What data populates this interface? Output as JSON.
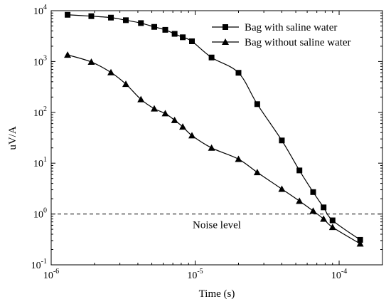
{
  "chart_data": {
    "type": "line",
    "xlabel": "Time (s)",
    "ylabel": "uV/A",
    "x_scale": "log",
    "y_scale": "log",
    "xlim": [
      1e-06,
      0.0002
    ],
    "ylim": [
      0.1,
      10000
    ],
    "x_ticks": [
      {
        "base": "10",
        "exp": "-6",
        "value": 1e-06
      },
      {
        "base": "10",
        "exp": "-5",
        "value": 1e-05
      },
      {
        "base": "10",
        "exp": "-4",
        "value": 0.0001
      }
    ],
    "y_ticks": [
      {
        "base": "10",
        "exp": "-1",
        "value": 0.1
      },
      {
        "base": "10",
        "exp": "0",
        "value": 1
      },
      {
        "base": "10",
        "exp": "1",
        "value": 10
      },
      {
        "base": "10",
        "exp": "2",
        "value": 100
      },
      {
        "base": "10",
        "exp": "3",
        "value": 1000
      },
      {
        "base": "10",
        "exp": "4",
        "value": 10000
      }
    ],
    "grid": false,
    "legend_position": "top-right",
    "series": [
      {
        "name": "Bag with saline water",
        "marker": "square",
        "color": "#000000",
        "points": [
          [
            1.3e-06,
            8300
          ],
          [
            1.9e-06,
            7800
          ],
          [
            2.6e-06,
            7300
          ],
          [
            3.3e-06,
            6500
          ],
          [
            4.2e-06,
            5700
          ],
          [
            5.2e-06,
            4800
          ],
          [
            6.2e-06,
            4200
          ],
          [
            7.2e-06,
            3500
          ],
          [
            8.2e-06,
            3000
          ],
          [
            9.5e-06,
            2500
          ],
          [
            1.3e-05,
            1200
          ],
          [
            2e-05,
            600
          ],
          [
            2.7e-05,
            145
          ],
          [
            4e-05,
            28
          ],
          [
            5.3e-05,
            7.2
          ],
          [
            6.6e-05,
            2.7
          ],
          [
            7.8e-05,
            1.35
          ],
          [
            9e-05,
            0.75
          ],
          [
            0.00014,
            0.31
          ]
        ]
      },
      {
        "name": "Bag without saline water",
        "marker": "triangle",
        "color": "#000000",
        "points": [
          [
            1.3e-06,
            1350
          ],
          [
            1.9e-06,
            980
          ],
          [
            2.6e-06,
            610
          ],
          [
            3.3e-06,
            360
          ],
          [
            4.2e-06,
            180
          ],
          [
            5.2e-06,
            118
          ],
          [
            6.2e-06,
            95
          ],
          [
            7.2e-06,
            70
          ],
          [
            8.2e-06,
            52
          ],
          [
            9.5e-06,
            35
          ],
          [
            1.3e-05,
            20
          ],
          [
            2e-05,
            12
          ],
          [
            2.7e-05,
            6.6
          ],
          [
            4e-05,
            3.1
          ],
          [
            5.3e-05,
            1.8
          ],
          [
            6.6e-05,
            1.15
          ],
          [
            7.8e-05,
            0.8
          ],
          [
            9e-05,
            0.55
          ],
          [
            0.00014,
            0.26
          ]
        ]
      }
    ],
    "reference_line": {
      "y": 1.0,
      "style": "dashed",
      "label": "Noise level"
    }
  }
}
